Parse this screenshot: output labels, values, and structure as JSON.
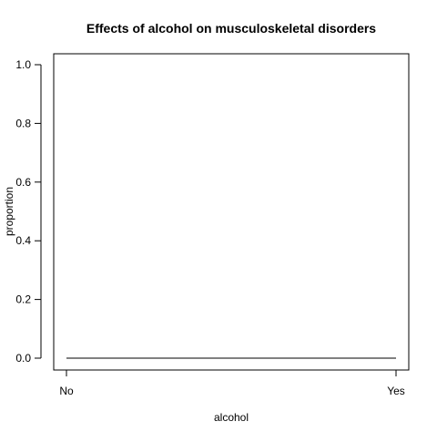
{
  "chart_data": {
    "type": "line",
    "title": "Effects of alcohol on musculoskeletal disorders",
    "xlabel": "alcohol",
    "ylabel": "proportion",
    "categories": [
      "No",
      "Yes"
    ],
    "series": [
      {
        "values": [
          0.0,
          0.0
        ]
      }
    ],
    "ylim": [
      0,
      1
    ],
    "yticks": [
      "0.0",
      "0.2",
      "0.4",
      "0.6",
      "0.8",
      "1.0"
    ],
    "grid": false,
    "line_color": "#000000"
  }
}
